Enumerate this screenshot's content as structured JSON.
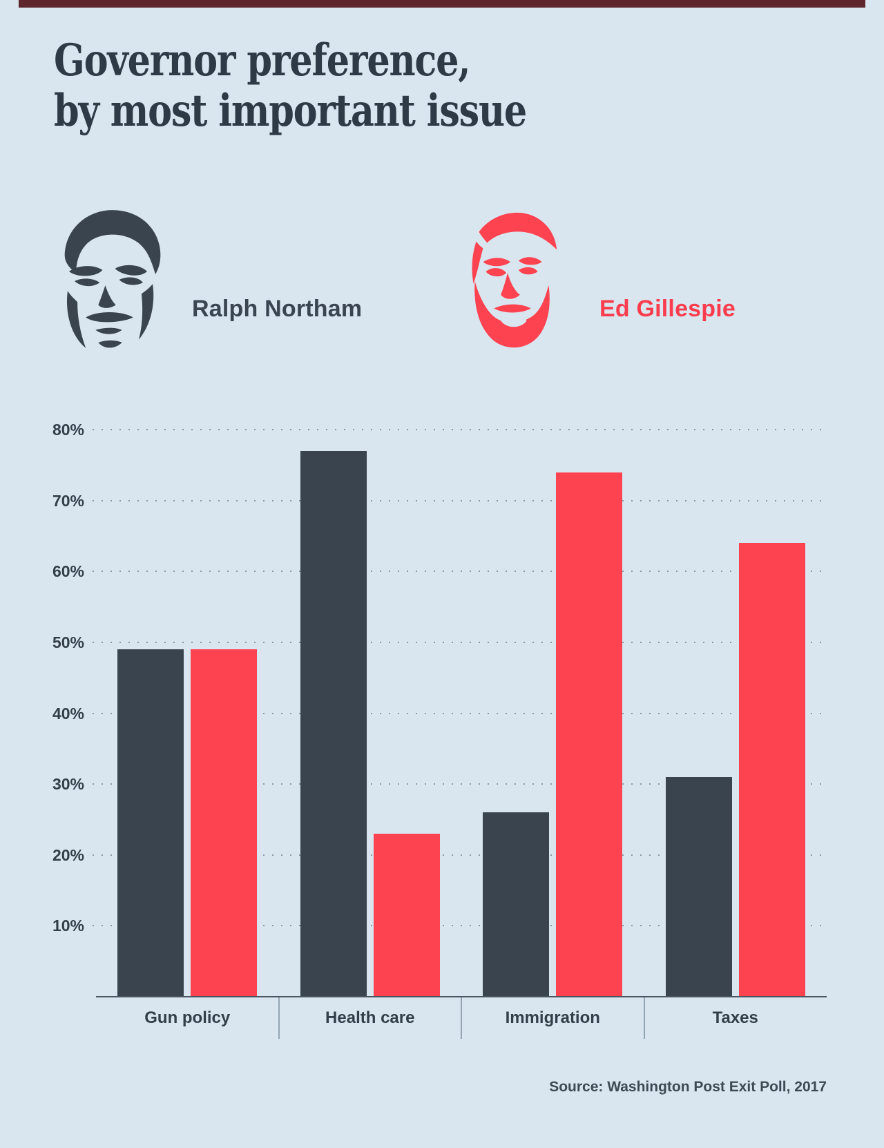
{
  "page": {
    "background_color": "#d9e6f0",
    "top_bar_color": "#5e252d"
  },
  "title": {
    "line1": "Governor preference,",
    "line2": "by most important issue"
  },
  "legend": {
    "northam": {
      "name": "Ralph Northam",
      "color": "#39444f"
    },
    "gillespie": {
      "name": "Ed Gillespie",
      "color": "#fd4350"
    }
  },
  "chart_data": {
    "type": "bar",
    "title": "Governor preference, by most important issue",
    "categories": [
      "Gun policy",
      "Health care",
      "Immigration",
      "Taxes"
    ],
    "series": [
      {
        "name": "Ralph Northam",
        "color": "#39444f",
        "values": [
          49,
          77,
          26,
          31
        ]
      },
      {
        "name": "Ed Gillespie",
        "color": "#fd4350",
        "values": [
          49,
          23,
          74,
          64
        ]
      }
    ],
    "xlabel": "",
    "ylabel": "",
    "y_ticks": [
      "10%",
      "20%",
      "30%",
      "40%",
      "50%",
      "60%",
      "70%",
      "80%"
    ],
    "ylim": [
      0,
      84
    ],
    "grid": "horizontal-dotted",
    "legend_position": "top"
  },
  "source": {
    "text": "Source: Washington Post Exit Poll, 2017"
  }
}
